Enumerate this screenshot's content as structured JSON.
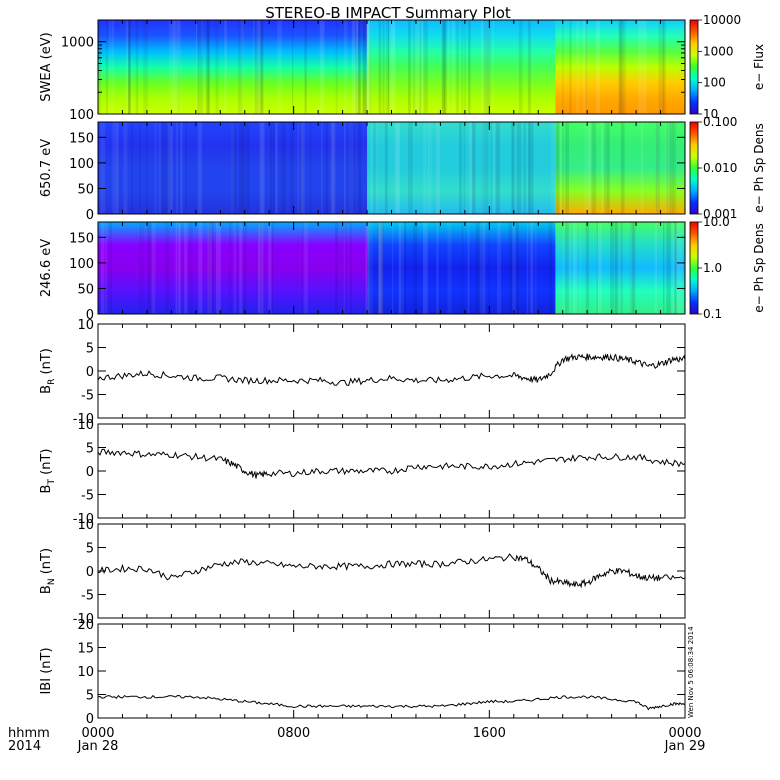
{
  "title": "STEREO-B IMPACT Summary Plot",
  "stamp": "Wen Nov 5 06:08:34 2014",
  "x_axis": {
    "row1_label": "hhmm",
    "row2_label": "2014",
    "ticks": [
      {
        "hours": 0,
        "label": "0000",
        "sub": "Jan 28"
      },
      {
        "hours": 8,
        "label": "0800",
        "sub": ""
      },
      {
        "hours": 16,
        "label": "1600",
        "sub": ""
      },
      {
        "hours": 24,
        "label": "0000",
        "sub": "Jan 29"
      }
    ]
  },
  "chart_data": [
    {
      "type": "heatmap",
      "ylabel": "SWEA (eV)",
      "ylim": [
        100,
        2000
      ],
      "yscale": "log",
      "yticks": [
        100,
        1000
      ],
      "colorbar": {
        "label": "e− Flux",
        "scale": "log",
        "range": [
          10,
          10000
        ],
        "ticks": [
          "10",
          "100",
          "1000",
          "10000"
        ]
      },
      "description_regions": [
        {
          "t": [
            0,
            11
          ],
          "note": "low flux at high energy, high flux at low energy"
        },
        {
          "t": [
            11,
            18.7
          ],
          "note": "moderate flux"
        },
        {
          "t": [
            18.7,
            24
          ],
          "note": "enhanced flux"
        }
      ]
    },
    {
      "type": "heatmap",
      "ylabel": "650.7 eV",
      "ylim": [
        0,
        180
      ],
      "yticks": [
        0,
        50,
        100,
        150
      ],
      "colorbar": {
        "label": "e− Ph Sp Dens",
        "scale": "log",
        "range": [
          0.001,
          0.1
        ],
        "ticks": [
          "0.001",
          "0.010",
          "0.100"
        ]
      }
    },
    {
      "type": "heatmap",
      "ylabel": "246.6 eV",
      "ylim": [
        0,
        180
      ],
      "yticks": [
        0,
        50,
        100,
        150
      ],
      "colorbar": {
        "label": "e− Ph Sp Dens",
        "scale": "log",
        "range": [
          0.1,
          10
        ],
        "ticks": [
          "0.1",
          "1.0",
          "10.0"
        ]
      }
    },
    {
      "type": "line",
      "key": "br",
      "ylabel_main": "B",
      "ylabel_sub": "R",
      "ylabel_unit": " (nT)",
      "ylim": [
        -10,
        10
      ],
      "yticks": [
        -10,
        -5,
        0,
        5,
        10
      ],
      "series": [
        {
          "x": [
            0,
            1,
            2,
            3,
            4,
            5,
            6,
            7,
            8,
            9,
            10,
            11,
            12,
            13,
            14,
            15,
            16,
            17,
            17.5,
            18,
            18.5,
            19,
            19.5,
            20,
            20.5,
            21,
            21.5,
            22,
            22.5,
            23,
            23.5,
            24
          ],
          "y": [
            -1.5,
            -1,
            -0.5,
            -1,
            -1.5,
            -1.5,
            -2,
            -2,
            -2,
            -2,
            -2.5,
            -2,
            -1.5,
            -2,
            -2,
            -1.5,
            -1,
            -1,
            -1.5,
            -2,
            -0.5,
            2.5,
            3,
            3,
            3,
            3,
            2.5,
            2,
            1,
            1.5,
            2.5,
            2.5
          ]
        }
      ]
    },
    {
      "type": "line",
      "key": "bt",
      "ylabel_main": "B",
      "ylabel_sub": "T",
      "ylabel_unit": " (nT)",
      "ylim": [
        -10,
        10
      ],
      "yticks": [
        -10,
        -5,
        0,
        5,
        10
      ],
      "series": [
        {
          "x": [
            0,
            1,
            2,
            3,
            4,
            5,
            5.5,
            6,
            6.5,
            7,
            8,
            9,
            10,
            11,
            12,
            13,
            14,
            15,
            16,
            17,
            18,
            19,
            20,
            21,
            22,
            23,
            24
          ],
          "y": [
            4,
            4,
            3.5,
            3.5,
            3,
            2.5,
            1.5,
            0,
            -1,
            -0.5,
            -0.5,
            0,
            0,
            0,
            0,
            1,
            1,
            1,
            1,
            1.5,
            2,
            2.5,
            3,
            3,
            3,
            2,
            1.5
          ]
        }
      ]
    },
    {
      "type": "line",
      "key": "bn",
      "ylabel_main": "B",
      "ylabel_sub": "N",
      "ylabel_unit": " (nT)",
      "ylim": [
        -10,
        10
      ],
      "yticks": [
        -10,
        -5,
        0,
        5,
        10
      ],
      "series": [
        {
          "x": [
            0,
            1,
            2,
            3,
            4,
            5,
            6,
            7,
            8,
            9,
            10,
            11,
            12,
            13,
            14,
            15,
            16,
            17,
            17.5,
            18,
            18.5,
            19,
            19.5,
            20,
            20.5,
            21,
            21.5,
            22,
            22.5,
            23,
            24
          ],
          "y": [
            0,
            0.5,
            0.5,
            -1.5,
            0,
            1.5,
            2,
            1.5,
            1,
            1,
            1,
            1,
            1.5,
            1.5,
            1.5,
            2,
            2.5,
            3,
            2.5,
            0.5,
            -2,
            -2.5,
            -3,
            -2.5,
            -1,
            0,
            0,
            -1,
            -1.5,
            -1.5,
            -1.5
          ]
        }
      ]
    },
    {
      "type": "line",
      "key": "bmag",
      "ylabel_main": "IBI",
      "ylabel_sub": "",
      "ylabel_unit": " (nT)",
      "ylim": [
        0,
        20
      ],
      "yticks": [
        0,
        5,
        10,
        15,
        20
      ],
      "series": [
        {
          "x": [
            0,
            1,
            2,
            3,
            4,
            5,
            6,
            7,
            8,
            9,
            10,
            11,
            12,
            13,
            14,
            15,
            16,
            17,
            18,
            19,
            20,
            21,
            22,
            22.5,
            23,
            23.5,
            24
          ],
          "y": [
            4.5,
            4.5,
            4.5,
            4.5,
            4.5,
            4,
            3.5,
            3,
            2.5,
            2.5,
            2.5,
            2.5,
            2.5,
            2.5,
            2.5,
            3,
            3.5,
            3.5,
            4,
            4.5,
            4.5,
            4,
            3.5,
            2,
            2.5,
            3,
            3
          ]
        }
      ]
    }
  ]
}
